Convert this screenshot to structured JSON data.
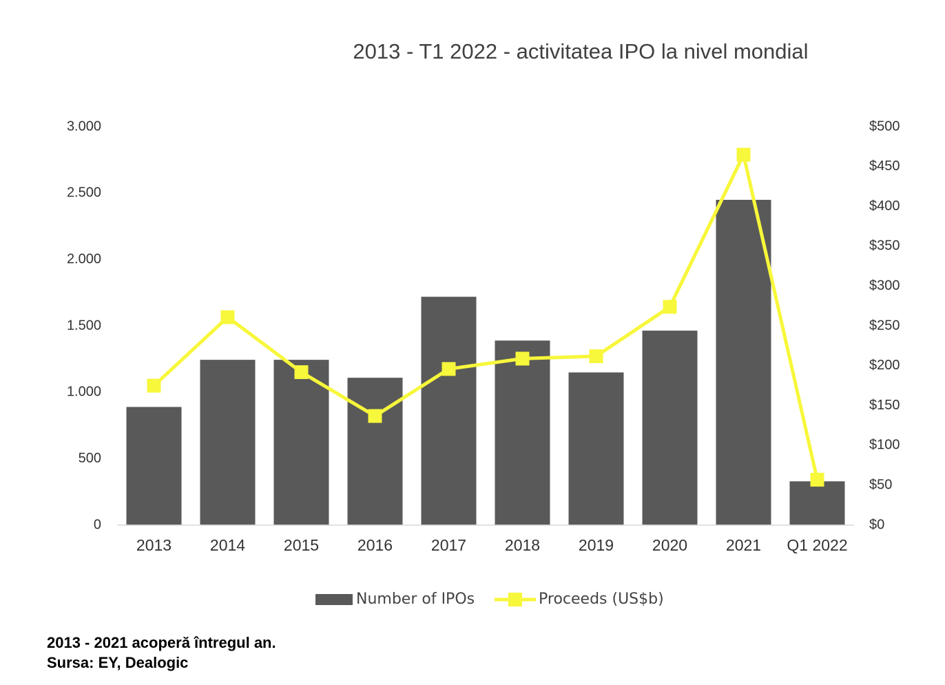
{
  "chart_data": {
    "type": "bar_line",
    "title": "2013 - T1 2022 - activitatea IPO la nivel mondial",
    "categories": [
      "2013",
      "2014",
      "2015",
      "2016",
      "2017",
      "2018",
      "2019",
      "2020",
      "2021",
      "Q1 2022"
    ],
    "series": [
      {
        "name": "Number of IPOs",
        "type": "bar",
        "color": "#595959",
        "values": [
          890,
          1245,
          1245,
          1110,
          1720,
          1390,
          1150,
          1465,
          2450,
          330
        ]
      },
      {
        "name": "Proceeds (US$b)",
        "type": "line",
        "axis": "y2",
        "color": "#f7f73b",
        "values": [
          175,
          261,
          192,
          137,
          196,
          209,
          212,
          274,
          465,
          57
        ]
      }
    ],
    "ylim": [
      0,
      3000
    ],
    "yticks": [
      0,
      500,
      {
        "value": 1000,
        "label": "1.000"
      },
      {
        "value": 1500,
        "label": "1.500"
      },
      {
        "value": 2000,
        "label": "2.000"
      },
      {
        "value": 2500,
        "label": "2.500"
      },
      {
        "value": 3000,
        "label": "3.000"
      }
    ],
    "y2lim": [
      0,
      500
    ],
    "y2ticks": [
      {
        "value": 0,
        "label": "$0"
      },
      {
        "value": 50,
        "label": "$50"
      },
      {
        "value": 100,
        "label": "$100"
      },
      {
        "value": 150,
        "label": "$150"
      },
      {
        "value": 200,
        "label": "$200"
      },
      {
        "value": 250,
        "label": "$250"
      },
      {
        "value": 300,
        "label": "$300"
      },
      {
        "value": 350,
        "label": "$350"
      },
      {
        "value": 400,
        "label": "$400"
      },
      {
        "value": 450,
        "label": "$450"
      },
      {
        "value": 500,
        "label": "$500"
      }
    ],
    "legend": "bottom",
    "notes": [
      "2013 - 2021 acoperă întregul an.",
      "Sursa: EY, Dealogic"
    ]
  }
}
